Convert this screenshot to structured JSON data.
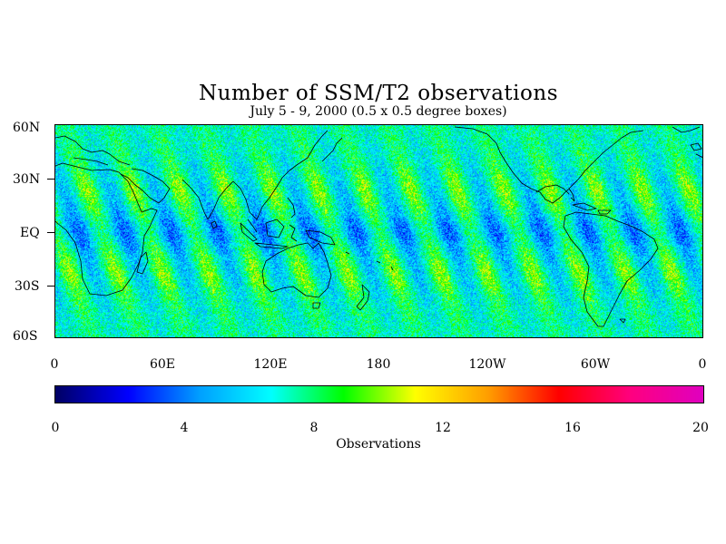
{
  "title": "Number of SSM/T2 observations",
  "subtitle": "July 5 - 9, 2000 (0.5 x 0.5 degree boxes)",
  "chart_data": {
    "type": "heatmap",
    "title": "Number of SSM/T2 observations",
    "subtitle": "July 5 - 9, 2000 (0.5 x 0.5 degree boxes)",
    "xlim": [
      0,
      360
    ],
    "ylim": [
      -60,
      60
    ],
    "grid_resolution_degrees": 0.5,
    "lat_ticks": [
      "60N",
      "30N",
      "EQ",
      "30S",
      "60S"
    ],
    "lat_tick_values": [
      60,
      30,
      0,
      -30,
      -60
    ],
    "lon_ticks": [
      "0",
      "60E",
      "120E",
      "180",
      "120W",
      "60W",
      "0"
    ],
    "lon_tick_values": [
      0,
      60,
      120,
      180,
      240,
      300,
      360
    ],
    "colorbar": {
      "label": "Observations",
      "min": 0,
      "max": 20,
      "ticks": [
        "0",
        "4",
        "8",
        "12",
        "16",
        "20"
      ],
      "tick_values": [
        0,
        4,
        8,
        12,
        16,
        20
      ],
      "colormap": [
        "#000066",
        "#0000ff",
        "#00a0ff",
        "#00ffff",
        "#00ff00",
        "#ffff00",
        "#ffa000",
        "#ff0000",
        "#ff0080",
        "#e000c0"
      ]
    }
  }
}
